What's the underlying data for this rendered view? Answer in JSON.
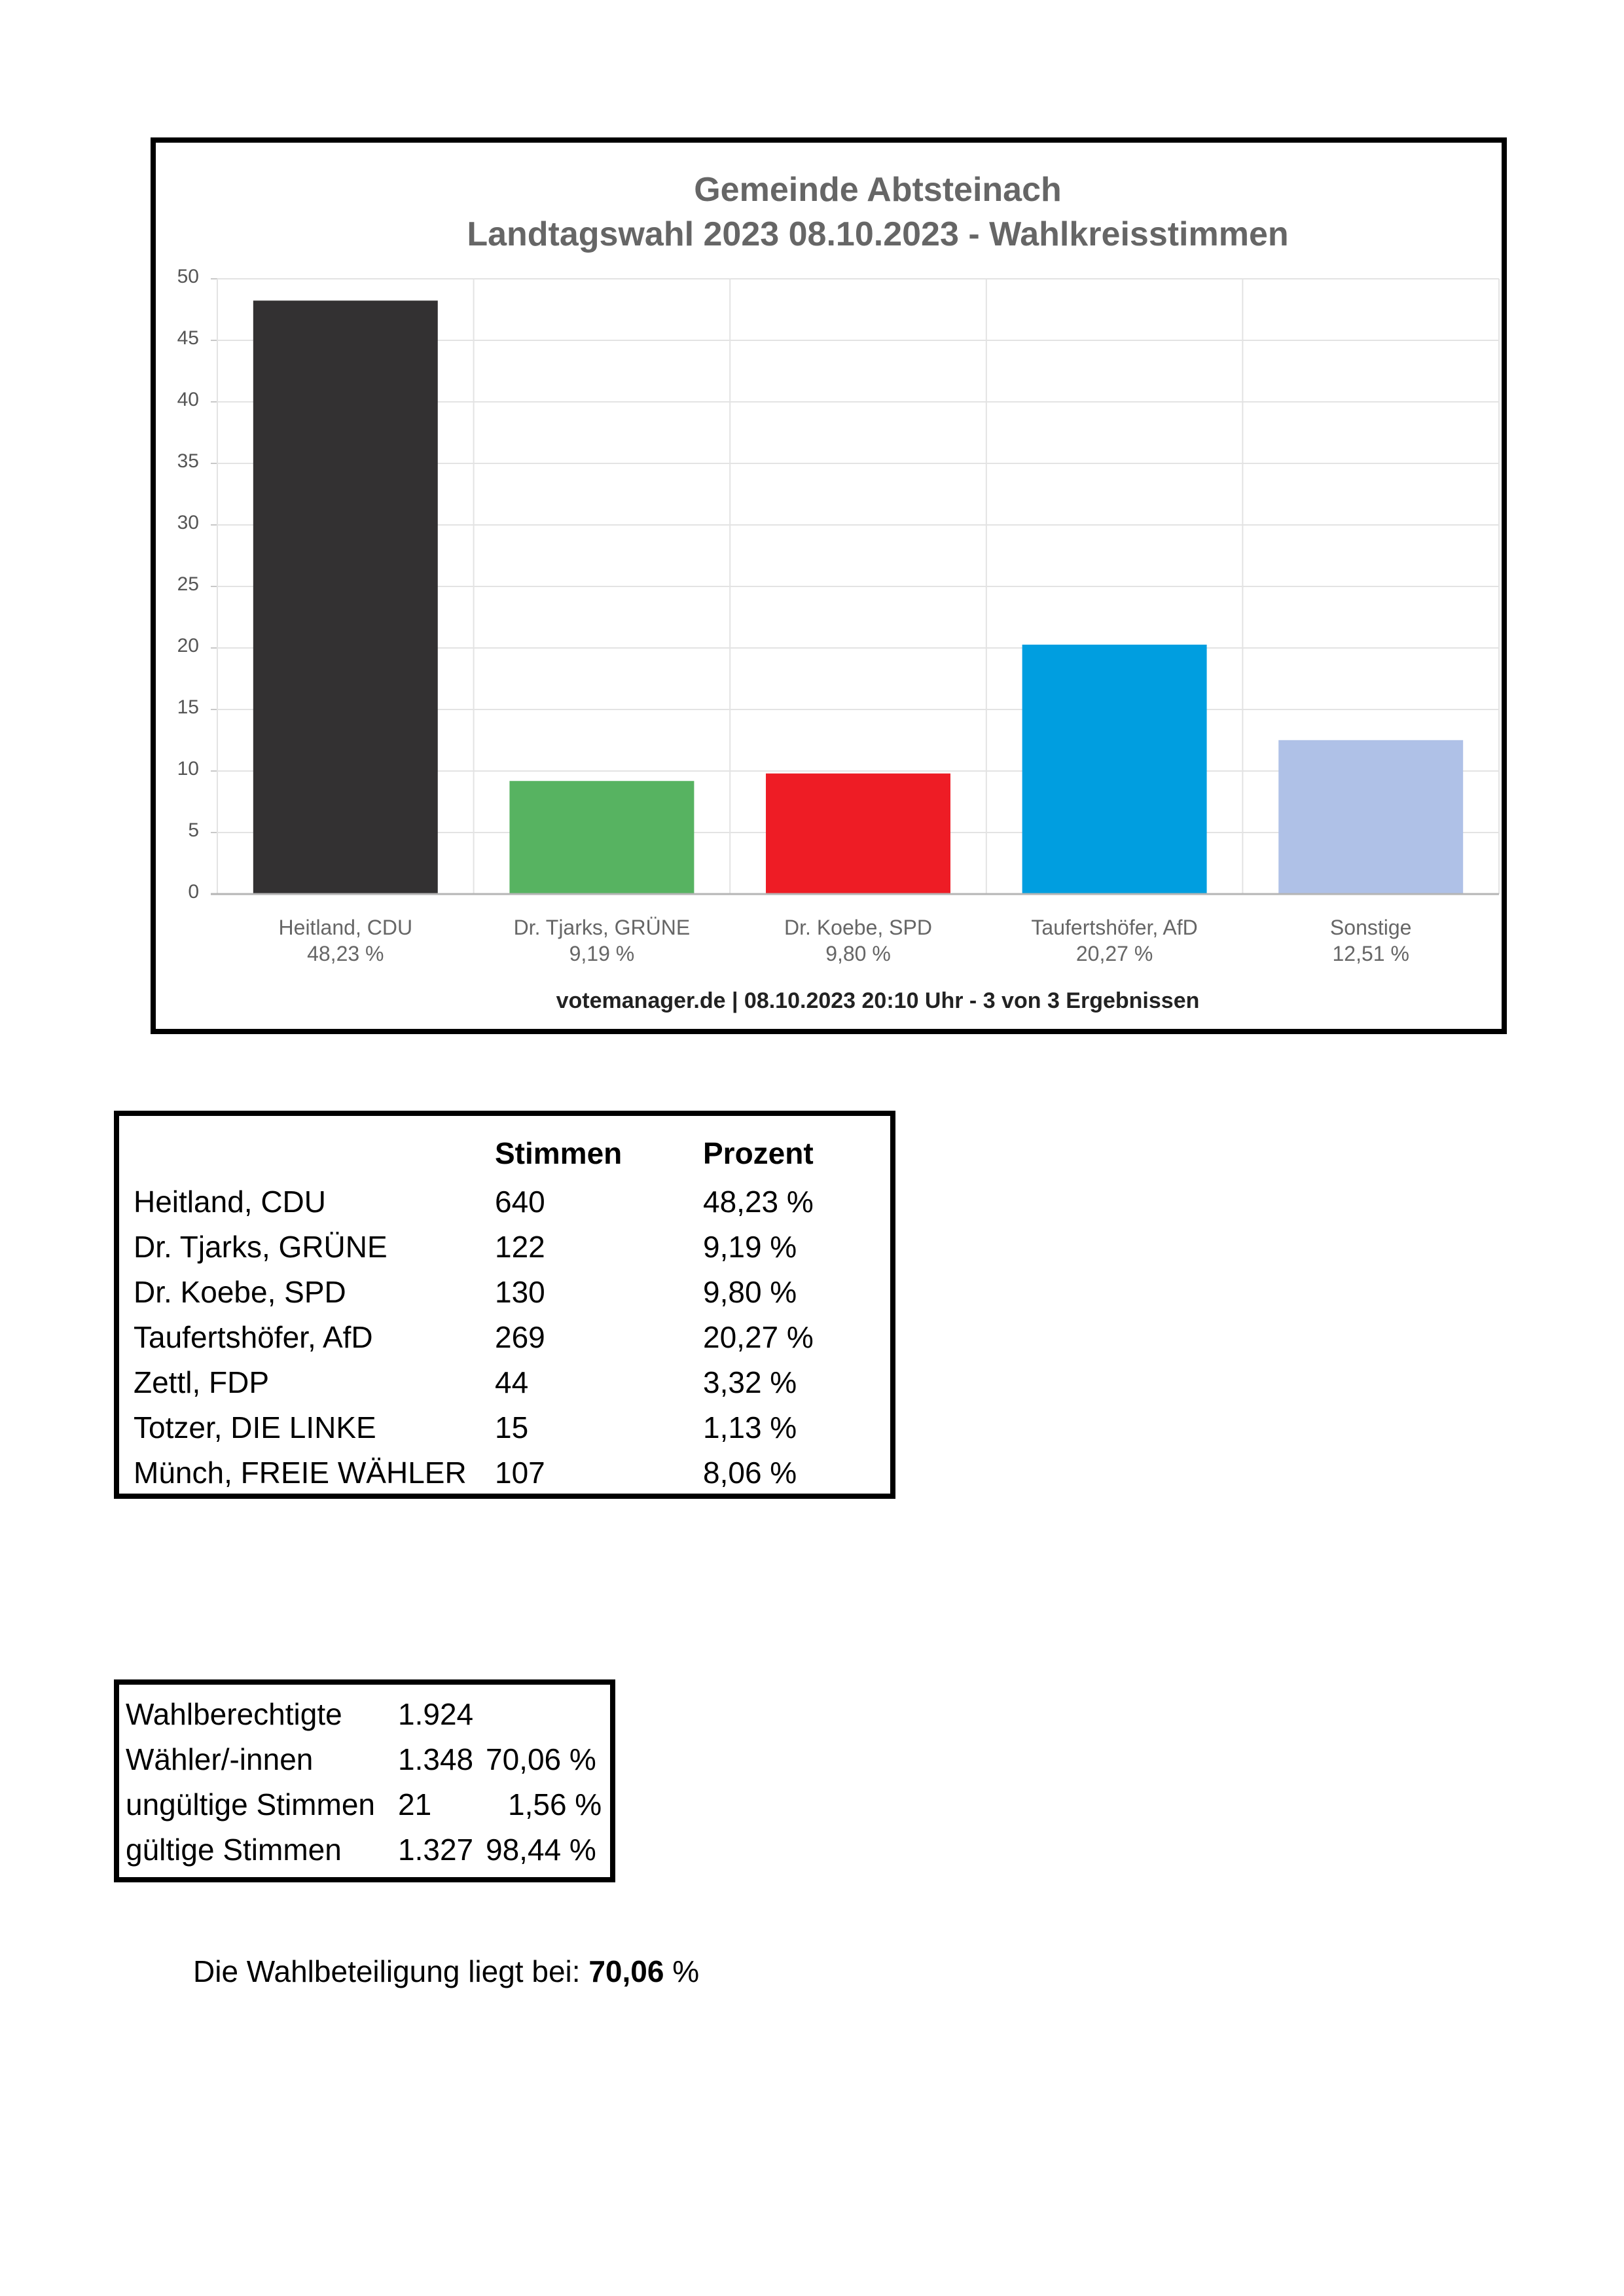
{
  "chart_data": {
    "type": "bar",
    "title": "Gemeinde Abtsteinach",
    "subtitle": "Landtagswahl 2023 08.10.2023  - Wahlkreisstimmen",
    "categories": [
      "Heitland, CDU",
      "Dr. Tjarks, GRÜNE",
      "Dr. Koebe, SPD",
      "Taufertshöfer, AfD",
      "Sonstige"
    ],
    "category_values": [
      "48,23 %",
      "9,19 %",
      "9,80 %",
      "20,27 %",
      "12,51 %"
    ],
    "values": [
      48.23,
      9.19,
      9.8,
      20.27,
      12.51
    ],
    "colors": [
      "#333132",
      "#57b361",
      "#ee1c25",
      "#009ee0",
      "#afc1e7"
    ],
    "ylim": [
      0,
      50
    ],
    "yticks": [
      "0",
      "5",
      "10",
      "15",
      "20",
      "25",
      "30",
      "35",
      "40",
      "45",
      "50"
    ],
    "grid": true,
    "footer": "votemanager.de | 08.10.2023 20:10 Uhr - 3 von 3 Ergebnissen"
  },
  "results": {
    "headers": [
      "",
      "Stimmen",
      "Prozent"
    ],
    "rows": [
      [
        "Heitland, CDU",
        "640",
        "48,23 %"
      ],
      [
        "Dr. Tjarks, GRÜNE",
        "122",
        "9,19 %"
      ],
      [
        "Dr. Koebe, SPD",
        "130",
        "9,80 %"
      ],
      [
        "Taufertshöfer, AfD",
        "269",
        "20,27 %"
      ],
      [
        "Zettl, FDP",
        "44",
        "3,32 %"
      ],
      [
        "Totzer, DIE LINKE",
        "15",
        "1,13 %"
      ],
      [
        "Münch, FREIE WÄHLER",
        "107",
        "8,06 %"
      ]
    ]
  },
  "summary": {
    "rows": [
      [
        "Wahlberechtigte",
        "1.924",
        ""
      ],
      [
        "Wähler/-innen",
        "1.348",
        "70,06 %"
      ],
      [
        "ungültige Stimmen",
        "21",
        "1,56 %"
      ],
      [
        "gültige Stimmen",
        "1.327",
        "98,44 %"
      ]
    ]
  },
  "turnout": {
    "label": "Die Wahlbeteiligung liegt bei:",
    "value": "70,06",
    "unit": "%"
  }
}
